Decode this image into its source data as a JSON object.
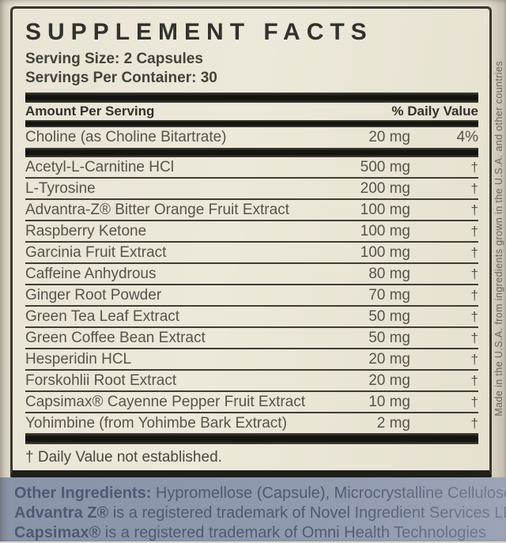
{
  "label": {
    "title": "SUPPLEMENT FACTS",
    "serving_size": "Serving Size: 2 Capsules",
    "servings_per_container": "Servings Per Container: 30",
    "columns": {
      "amount_header": "Amount Per Serving",
      "daily_value_header": "% Daily Value"
    },
    "primary_row": {
      "name": "Choline (as Choline Bitartrate)",
      "amount": "20 mg",
      "dv": "4%"
    },
    "rows": [
      {
        "name": "Acetyl-L-Carnitine HCl",
        "amount": "500 mg",
        "dv": "†"
      },
      {
        "name": "L-Tyrosine",
        "amount": "200 mg",
        "dv": "†"
      },
      {
        "name": "Advantra-Z® Bitter Orange Fruit Extract",
        "amount": "100 mg",
        "dv": "†"
      },
      {
        "name": "Raspberry Ketone",
        "amount": "100 mg",
        "dv": "†"
      },
      {
        "name": "Garcinia Fruit Extract",
        "amount": "100 mg",
        "dv": "†"
      },
      {
        "name": "Caffeine Anhydrous",
        "amount": "80 mg",
        "dv": "†"
      },
      {
        "name": "Ginger Root Powder",
        "amount": "70 mg",
        "dv": "†"
      },
      {
        "name": "Green Tea Leaf Extract",
        "amount": "50 mg",
        "dv": "†"
      },
      {
        "name": "Green Coffee Bean Extract",
        "amount": "50 mg",
        "dv": "†"
      },
      {
        "name": "Hesperidin HCL",
        "amount": "20 mg",
        "dv": "†"
      },
      {
        "name": "Forskohlii Root Extract",
        "amount": "20 mg",
        "dv": "†"
      },
      {
        "name": "Capsimax® Cayenne Pepper Fruit Extract",
        "amount": "10 mg",
        "dv": "†"
      },
      {
        "name": "Yohimbine (from Yohimbe Bark Extract)",
        "amount": "2 mg",
        "dv": "†"
      }
    ],
    "footnote": "† Daily Value not established."
  },
  "bottom": {
    "other_ingredients_label": "Other Ingredients:",
    "other_ingredients_text": " Hypromellose (Capsule), Microcrystalline Cellulose, Magnesium S",
    "trademark1_label": "Advantra Z®",
    "trademark1_text": " is a registered trademark of Novel Ingredient Services LLC.",
    "trademark2_label": "Capsimax®",
    "trademark2_text": " is a registered trademark of Omni Health Technologies"
  },
  "side": {
    "vertical_text": "Made in the U.S.A. from ingredients grown in the U.S.A. and other countries"
  },
  "colors": {
    "panel_cream": "#e9e4d5",
    "bar_black": "#16140f",
    "row_text": "#56534b",
    "bottom_background": "#8d97ab",
    "bottom_text": "#4e5a73"
  }
}
